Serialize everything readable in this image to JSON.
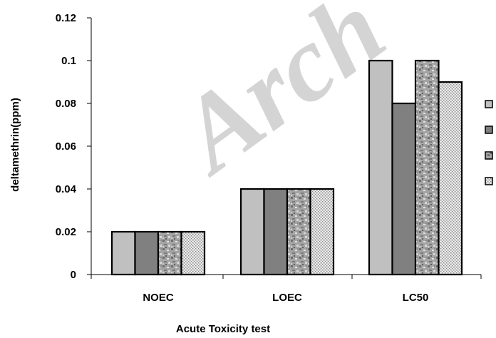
{
  "chart_data": {
    "type": "bar",
    "title": "",
    "xlabel": "Acute Toxicity test",
    "ylabel": "deltamethrin(ppm)",
    "categories": [
      "NOEC",
      "LOEC",
      "LC50"
    ],
    "ylim": [
      0,
      0.12
    ],
    "yticks": [
      "0",
      "0.02",
      "0.04",
      "0.06",
      "0.08",
      "0.1",
      "0.12"
    ],
    "grid": false,
    "legend": "right",
    "series": [
      {
        "values": [
          0.02,
          0.04,
          0.1
        ],
        "fill": "#c0c0c0",
        "pattern": "solid"
      },
      {
        "values": [
          0.02,
          0.04,
          0.08
        ],
        "fill": "#808080",
        "pattern": "solid"
      },
      {
        "values": [
          0.02,
          0.04,
          0.1
        ],
        "fill": "#a8a8a8",
        "pattern": "granite"
      },
      {
        "values": [
          0.02,
          0.04,
          0.09
        ],
        "fill": "#b0b0b0",
        "pattern": "dots"
      }
    ],
    "watermark": "Arch"
  }
}
